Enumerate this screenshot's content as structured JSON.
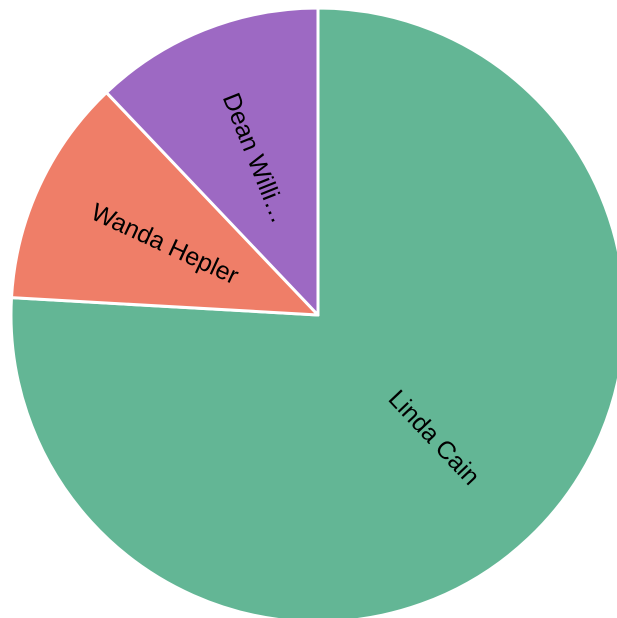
{
  "chart_data": {
    "type": "pie",
    "start": "12 o'clock",
    "direction": "clockwise",
    "slices": [
      {
        "label": "Linda Cain",
        "display_label": "Linda Cain",
        "value": 75.9,
        "color": "#63b695"
      },
      {
        "label": "Wanda Hepler",
        "display_label": "Wanda Hepler",
        "value": 12.0,
        "color": "#ef7e68"
      },
      {
        "label": "Dean Willi…",
        "display_label": "Dean Willi…",
        "value": 12.1,
        "color": "#9d69c3"
      }
    ]
  }
}
